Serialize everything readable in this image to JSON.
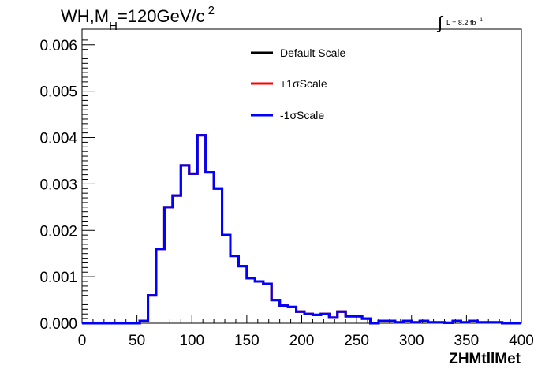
{
  "chart_data": {
    "type": "line",
    "subtype": "step-histogram",
    "title_main": "WH,M",
    "title_sub": "H",
    "title_rest": "=120GeV/c",
    "title_sup": "2",
    "lumi_label": "L = 8.2 fb",
    "lumi_sup": "-1",
    "lumi_integral": "∫",
    "xlabel": "ZHMtllMet",
    "ylabel": "",
    "xlim": [
      0,
      400
    ],
    "ylim": [
      0,
      0.0062
    ],
    "x_ticks": [
      0,
      50,
      100,
      150,
      200,
      250,
      300,
      350,
      400
    ],
    "x_tick_labels": [
      "0",
      "50",
      "100",
      "150",
      "200",
      "250",
      "300",
      "350",
      "400"
    ],
    "y_ticks": [
      0,
      0.001,
      0.002,
      0.003,
      0.004,
      0.005,
      0.006
    ],
    "y_tick_labels": [
      "0.000",
      "0.001",
      "0.002",
      "0.003",
      "0.004",
      "0.005",
      "0.006"
    ],
    "grid": false,
    "legend_position": "top-center",
    "bin_edges": [
      0,
      7.5,
      15,
      22.5,
      30,
      37.5,
      45,
      52.5,
      60,
      67.5,
      75,
      82.5,
      90,
      97.5,
      105,
      112.5,
      120,
      127.5,
      135,
      142.5,
      150,
      157.5,
      165,
      172.5,
      180,
      187.5,
      195,
      202.5,
      210,
      217.5,
      225,
      232.5,
      240,
      247.5,
      255,
      262.5,
      270,
      277.5,
      285,
      292.5,
      300,
      307.5,
      315,
      322.5,
      330,
      337.5,
      345,
      352.5,
      360,
      367.5,
      375,
      382.5,
      390,
      397.5,
      400
    ],
    "series": [
      {
        "name": "Default Scale",
        "color": "#000000",
        "values": [
          0,
          0,
          0,
          0,
          0,
          0,
          0,
          5e-05,
          0.0006,
          0.0016,
          0.0025,
          0.00275,
          0.0034,
          0.00322,
          0.00405,
          0.00325,
          0.0029,
          0.0019,
          0.00145,
          0.00123,
          0.00097,
          0.0009,
          0.00085,
          0.0005,
          0.00038,
          0.00035,
          0.00025,
          0.0002,
          0.00018,
          0.0002,
          0.00012,
          0.00025,
          0.00015,
          0.00015,
          0.0001,
          0,
          5e-05,
          5e-05,
          2e-05,
          5e-05,
          2e-05,
          5e-05,
          2e-05,
          2e-05,
          1e-05,
          5e-05,
          2e-05,
          5e-05,
          2e-05,
          2e-05,
          2e-05,
          0,
          0,
          0
        ]
      },
      {
        "name": "+1σScale",
        "color": "#ff0000",
        "values": [
          0,
          0,
          0,
          0,
          0,
          0,
          0,
          5e-05,
          0.0006,
          0.0016,
          0.0025,
          0.00275,
          0.0034,
          0.00322,
          0.00405,
          0.00325,
          0.0029,
          0.0019,
          0.00145,
          0.00123,
          0.00097,
          0.0009,
          0.00085,
          0.0005,
          0.00038,
          0.00035,
          0.00025,
          0.0002,
          0.00018,
          0.0002,
          0.00012,
          0.00025,
          0.00015,
          0.00015,
          0.0001,
          0,
          5e-05,
          5e-05,
          2e-05,
          5e-05,
          2e-05,
          5e-05,
          2e-05,
          2e-05,
          1e-05,
          5e-05,
          2e-05,
          5e-05,
          2e-05,
          2e-05,
          2e-05,
          0,
          0,
          0
        ]
      },
      {
        "name": "-1σScale",
        "color": "#0000ff",
        "values": [
          0,
          0,
          0,
          0,
          0,
          0,
          0,
          5e-05,
          0.0006,
          0.0016,
          0.0025,
          0.00275,
          0.0034,
          0.00322,
          0.00405,
          0.00325,
          0.0029,
          0.0019,
          0.00145,
          0.00123,
          0.00097,
          0.0009,
          0.00085,
          0.0005,
          0.00038,
          0.00035,
          0.00025,
          0.0002,
          0.00018,
          0.0002,
          0.00012,
          0.00025,
          0.00015,
          0.00015,
          0.0001,
          0,
          5e-05,
          5e-05,
          2e-05,
          5e-05,
          2e-05,
          5e-05,
          2e-05,
          2e-05,
          1e-05,
          5e-05,
          2e-05,
          5e-05,
          2e-05,
          2e-05,
          2e-05,
          0,
          0,
          0
        ]
      }
    ]
  }
}
